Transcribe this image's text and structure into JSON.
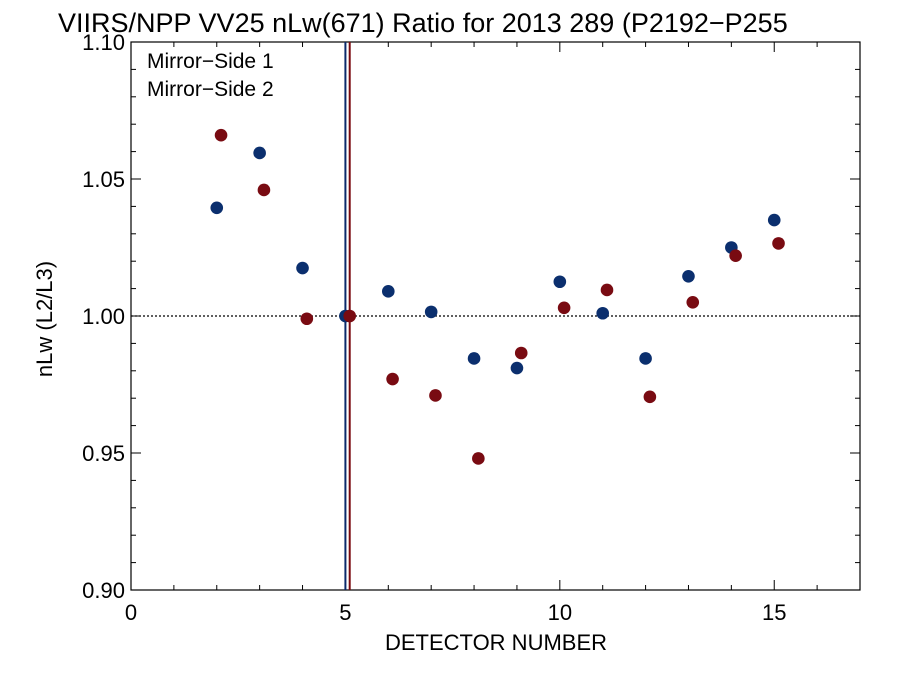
{
  "chart_data": {
    "type": "scatter",
    "title": "VIIRS/NPP VV25 nLw(671) Ratio for 2013 289 (P2192−P255",
    "xlabel": "DETECTOR NUMBER",
    "ylabel": "nLw (L2/L3)",
    "xlim": [
      0,
      17
    ],
    "ylim": [
      0.9,
      1.1
    ],
    "x_ticks": [
      0,
      5,
      10,
      15
    ],
    "x_tick_labels": [
      "0",
      "5",
      "10",
      "15"
    ],
    "y_ticks": [
      0.9,
      0.95,
      1.0,
      1.05,
      1.1
    ],
    "y_tick_labels": [
      "0.90",
      "0.95",
      "1.00",
      "1.05",
      "1.10"
    ],
    "reference_line_y": 1.0,
    "vertical_lines": [
      {
        "x": 5.0,
        "color": "#0b2a6b"
      },
      {
        "x": 5.1,
        "color": "#7a0a10"
      }
    ],
    "legend_position": "top-left",
    "grid": false,
    "series": [
      {
        "name": "Mirror−Side 1",
        "color": "#0b2f6e",
        "x": [
          2,
          3,
          4,
          5,
          6,
          7,
          8,
          9,
          10,
          11,
          12,
          13,
          14,
          15
        ],
        "y": [
          1.0395,
          1.0595,
          1.0175,
          1.0,
          1.009,
          1.0015,
          0.9845,
          0.981,
          1.0125,
          1.001,
          0.9845,
          1.0145,
          1.025,
          1.035
        ]
      },
      {
        "name": "Mirror−Side 2",
        "color": "#790b12",
        "x": [
          2.1,
          3.1,
          4.1,
          5.1,
          6.1,
          7.1,
          8.1,
          9.1,
          10.1,
          11.1,
          12.1,
          13.1,
          14.1,
          15.1
        ],
        "y": [
          1.066,
          1.046,
          0.999,
          1.0,
          0.977,
          0.971,
          0.948,
          0.9865,
          1.003,
          1.0095,
          0.9705,
          1.005,
          1.022,
          1.0265
        ]
      }
    ]
  }
}
